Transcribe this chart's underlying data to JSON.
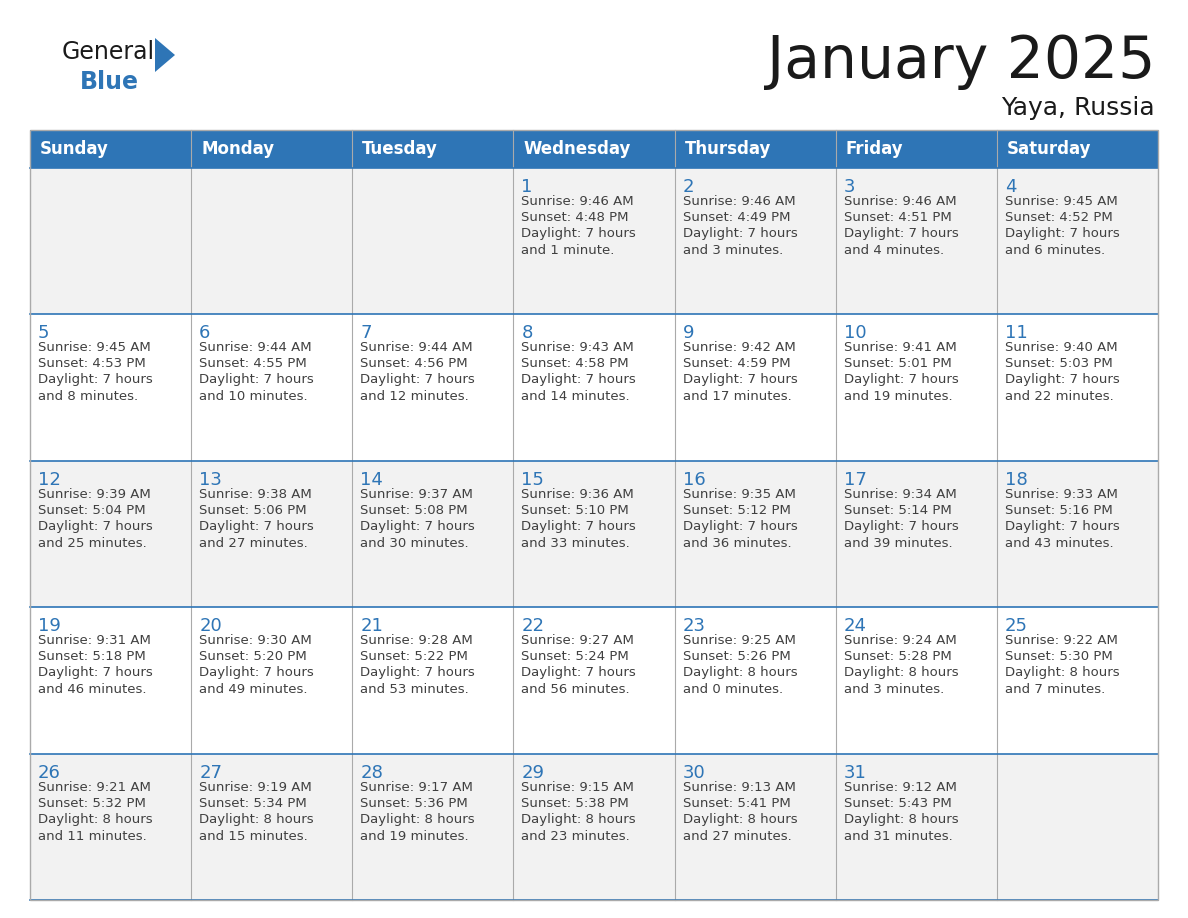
{
  "title": "January 2025",
  "subtitle": "Yaya, Russia",
  "days_of_week": [
    "Sunday",
    "Monday",
    "Tuesday",
    "Wednesday",
    "Thursday",
    "Friday",
    "Saturday"
  ],
  "header_bg": "#2E75B6",
  "header_text": "#FFFFFF",
  "row_bg_light": "#F2F2F2",
  "row_bg_white": "#FFFFFF",
  "separator_color": "#2E75B6",
  "day_num_color": "#2E75B6",
  "cell_text_color": "#404040",
  "border_color": "#AAAAAA",
  "calendar": [
    [
      null,
      null,
      null,
      {
        "day": 1,
        "sunrise": "9:46 AM",
        "sunset": "4:48 PM",
        "daylight": "7 hours\nand 1 minute."
      },
      {
        "day": 2,
        "sunrise": "9:46 AM",
        "sunset": "4:49 PM",
        "daylight": "7 hours\nand 3 minutes."
      },
      {
        "day": 3,
        "sunrise": "9:46 AM",
        "sunset": "4:51 PM",
        "daylight": "7 hours\nand 4 minutes."
      },
      {
        "day": 4,
        "sunrise": "9:45 AM",
        "sunset": "4:52 PM",
        "daylight": "7 hours\nand 6 minutes."
      }
    ],
    [
      {
        "day": 5,
        "sunrise": "9:45 AM",
        "sunset": "4:53 PM",
        "daylight": "7 hours\nand 8 minutes."
      },
      {
        "day": 6,
        "sunrise": "9:44 AM",
        "sunset": "4:55 PM",
        "daylight": "7 hours\nand 10 minutes."
      },
      {
        "day": 7,
        "sunrise": "9:44 AM",
        "sunset": "4:56 PM",
        "daylight": "7 hours\nand 12 minutes."
      },
      {
        "day": 8,
        "sunrise": "9:43 AM",
        "sunset": "4:58 PM",
        "daylight": "7 hours\nand 14 minutes."
      },
      {
        "day": 9,
        "sunrise": "9:42 AM",
        "sunset": "4:59 PM",
        "daylight": "7 hours\nand 17 minutes."
      },
      {
        "day": 10,
        "sunrise": "9:41 AM",
        "sunset": "5:01 PM",
        "daylight": "7 hours\nand 19 minutes."
      },
      {
        "day": 11,
        "sunrise": "9:40 AM",
        "sunset": "5:03 PM",
        "daylight": "7 hours\nand 22 minutes."
      }
    ],
    [
      {
        "day": 12,
        "sunrise": "9:39 AM",
        "sunset": "5:04 PM",
        "daylight": "7 hours\nand 25 minutes."
      },
      {
        "day": 13,
        "sunrise": "9:38 AM",
        "sunset": "5:06 PM",
        "daylight": "7 hours\nand 27 minutes."
      },
      {
        "day": 14,
        "sunrise": "9:37 AM",
        "sunset": "5:08 PM",
        "daylight": "7 hours\nand 30 minutes."
      },
      {
        "day": 15,
        "sunrise": "9:36 AM",
        "sunset": "5:10 PM",
        "daylight": "7 hours\nand 33 minutes."
      },
      {
        "day": 16,
        "sunrise": "9:35 AM",
        "sunset": "5:12 PM",
        "daylight": "7 hours\nand 36 minutes."
      },
      {
        "day": 17,
        "sunrise": "9:34 AM",
        "sunset": "5:14 PM",
        "daylight": "7 hours\nand 39 minutes."
      },
      {
        "day": 18,
        "sunrise": "9:33 AM",
        "sunset": "5:16 PM",
        "daylight": "7 hours\nand 43 minutes."
      }
    ],
    [
      {
        "day": 19,
        "sunrise": "9:31 AM",
        "sunset": "5:18 PM",
        "daylight": "7 hours\nand 46 minutes."
      },
      {
        "day": 20,
        "sunrise": "9:30 AM",
        "sunset": "5:20 PM",
        "daylight": "7 hours\nand 49 minutes."
      },
      {
        "day": 21,
        "sunrise": "9:28 AM",
        "sunset": "5:22 PM",
        "daylight": "7 hours\nand 53 minutes."
      },
      {
        "day": 22,
        "sunrise": "9:27 AM",
        "sunset": "5:24 PM",
        "daylight": "7 hours\nand 56 minutes."
      },
      {
        "day": 23,
        "sunrise": "9:25 AM",
        "sunset": "5:26 PM",
        "daylight": "8 hours\nand 0 minutes."
      },
      {
        "day": 24,
        "sunrise": "9:24 AM",
        "sunset": "5:28 PM",
        "daylight": "8 hours\nand 3 minutes."
      },
      {
        "day": 25,
        "sunrise": "9:22 AM",
        "sunset": "5:30 PM",
        "daylight": "8 hours\nand 7 minutes."
      }
    ],
    [
      {
        "day": 26,
        "sunrise": "9:21 AM",
        "sunset": "5:32 PM",
        "daylight": "8 hours\nand 11 minutes."
      },
      {
        "day": 27,
        "sunrise": "9:19 AM",
        "sunset": "5:34 PM",
        "daylight": "8 hours\nand 15 minutes."
      },
      {
        "day": 28,
        "sunrise": "9:17 AM",
        "sunset": "5:36 PM",
        "daylight": "8 hours\nand 19 minutes."
      },
      {
        "day": 29,
        "sunrise": "9:15 AM",
        "sunset": "5:38 PM",
        "daylight": "8 hours\nand 23 minutes."
      },
      {
        "day": 30,
        "sunrise": "9:13 AM",
        "sunset": "5:41 PM",
        "daylight": "8 hours\nand 27 minutes."
      },
      {
        "day": 31,
        "sunrise": "9:12 AM",
        "sunset": "5:43 PM",
        "daylight": "8 hours\nand 31 minutes."
      },
      null
    ]
  ]
}
